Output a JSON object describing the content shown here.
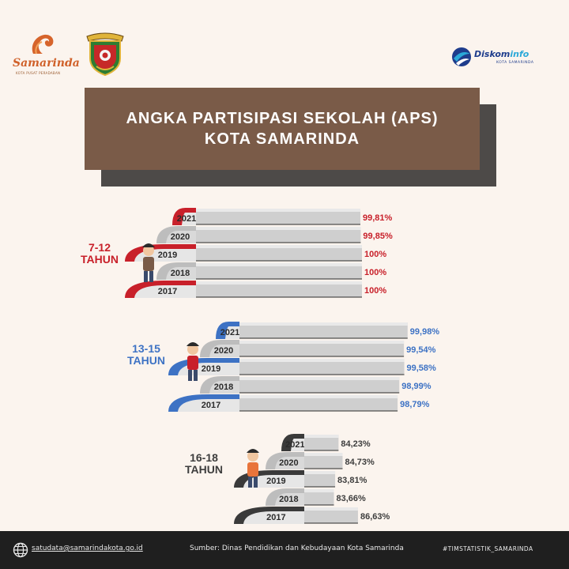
{
  "header": {
    "samarinda_logo_text": "Samarinda",
    "samarinda_logo_tagline": "KOTA PUSAT PERADABAN",
    "diskominfo_logo_text": "Diskom",
    "diskominfo_logo_text_accent": "info",
    "diskominfo_logo_sub": "KOTA SAMARINDA"
  },
  "title": {
    "line1": "ANGKA PARTISIPASI SEKOLAH (APS)",
    "line2": "KOTA SAMARINDA"
  },
  "chart_data": {
    "type": "bar",
    "title": "ANGKA PARTISIPASI SEKOLAH (APS) KOTA SAMARINDA",
    "categories": [
      "2021",
      "2020",
      "2019",
      "2018",
      "2017"
    ],
    "groups": [
      {
        "name": "7-12 TAHUN",
        "name_lines": [
          "7-12",
          "TAHUN"
        ],
        "color": "#c8202a",
        "values": [
          99.81,
          99.85,
          100,
          100,
          100
        ],
        "labels": [
          "99,81%",
          "99,85%",
          "100%",
          "100%",
          "100%"
        ]
      },
      {
        "name": "13-15 TAHUN",
        "name_lines": [
          "13-15",
          "TAHUN"
        ],
        "color": "#3d72c4",
        "values": [
          99.98,
          99.54,
          99.58,
          98.99,
          98.79
        ],
        "labels": [
          "99,98%",
          "99,54%",
          "99,58%",
          "98,99%",
          "98,79%"
        ]
      },
      {
        "name": "16-18 TAHUN",
        "name_lines": [
          "16-18",
          "TAHUN"
        ],
        "color": "#3a3a3a",
        "values": [
          84.23,
          84.73,
          83.81,
          83.66,
          86.63
        ],
        "labels": [
          "84,23%",
          "84,73%",
          "83,81%",
          "83,66%",
          "86,63%"
        ]
      }
    ],
    "unit": "%"
  },
  "footer": {
    "email": "satudata@samarindakota.go.id",
    "source": "Sumber: Dinas Pendidikan dan Kebudayaan Kota Samarinda",
    "hashtag": "#TIMSTATISTIK_SAMARINDA"
  }
}
